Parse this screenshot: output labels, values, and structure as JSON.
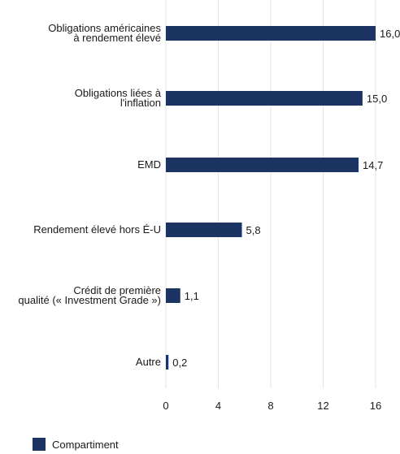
{
  "chart_data": {
    "type": "bar",
    "orientation": "horizontal",
    "categories": [
      [
        "Obligations américaines",
        "à rendement élevé"
      ],
      [
        "Obligations liées à",
        "l'inflation"
      ],
      [
        "EMD"
      ],
      [
        "Rendement élevé hors É-U"
      ],
      [
        "Crédit de première",
        "qualité (« Investment Grade »)"
      ],
      [
        "Autre"
      ]
    ],
    "series": [
      {
        "name": "Compartiment",
        "values": [
          16.0,
          15.0,
          14.7,
          5.8,
          1.1,
          0.2
        ],
        "labels": [
          "16,0",
          "15,0",
          "14,7",
          "5,8",
          "1,1",
          "0,2"
        ],
        "color": "#1c3461"
      }
    ],
    "xlim": [
      0,
      16
    ],
    "xticks": [
      0,
      4,
      8,
      12,
      16
    ],
    "xtick_labels": [
      "0",
      "4",
      "8",
      "12",
      "16"
    ],
    "grid": "vertical",
    "grid_color": "#e3e3e3",
    "legend_position": "bottom-left"
  }
}
